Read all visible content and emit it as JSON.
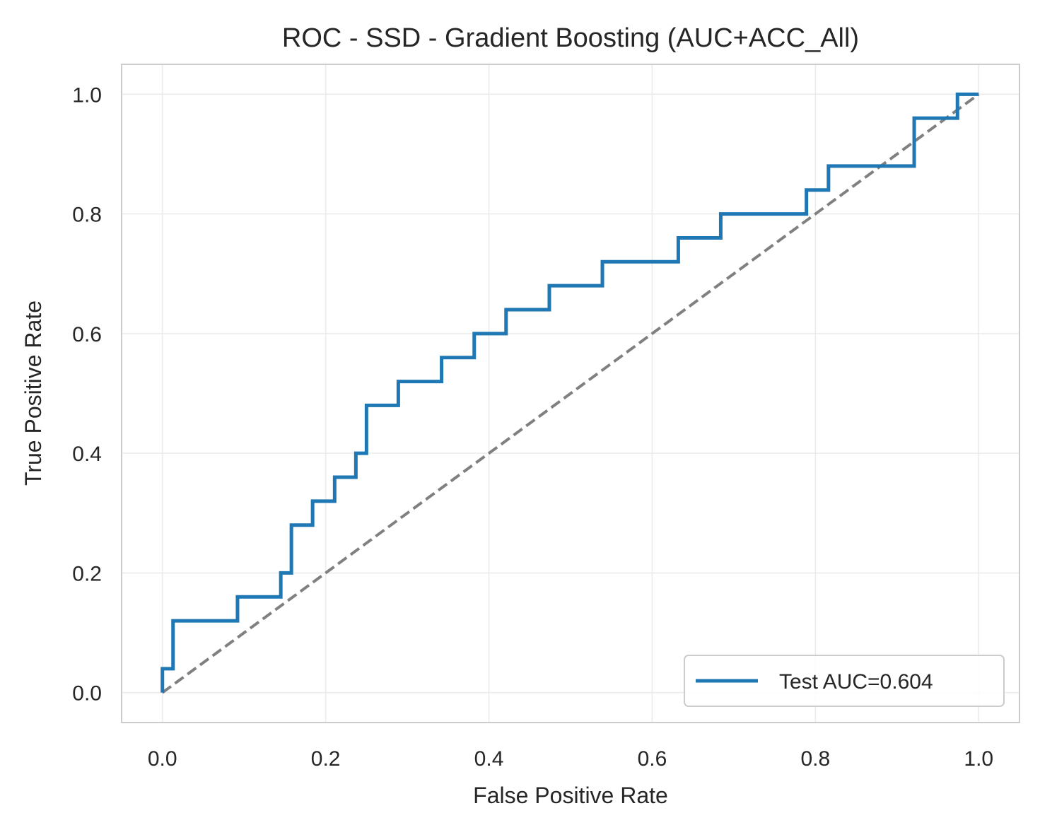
{
  "chart_data": {
    "type": "line",
    "title": "ROC - SSD - Gradient Boosting (AUC+ACC_All)",
    "xlabel": "False Positive Rate",
    "ylabel": "True Positive Rate",
    "xlim": [
      -0.05,
      1.05
    ],
    "ylim": [
      -0.05,
      1.05
    ],
    "xticks": [
      "0.0",
      "0.2",
      "0.4",
      "0.6",
      "0.8",
      "1.0"
    ],
    "yticks": [
      "0.0",
      "0.2",
      "0.4",
      "0.6",
      "0.8",
      "1.0"
    ],
    "grid": true,
    "legend_position": "lower-right",
    "series": [
      {
        "name": "Test AUC=0.604",
        "color": "#1f77b4",
        "style": "solid",
        "x": [
          0,
          0,
          0.013,
          0.013,
          0.092,
          0.092,
          0.145,
          0.145,
          0.158,
          0.158,
          0.184,
          0.184,
          0.211,
          0.211,
          0.237,
          0.237,
          0.25,
          0.25,
          0.289,
          0.289,
          0.342,
          0.342,
          0.382,
          0.382,
          0.421,
          0.421,
          0.474,
          0.474,
          0.539,
          0.539,
          0.632,
          0.632,
          0.684,
          0.684,
          0.789,
          0.789,
          0.816,
          0.816,
          0.921,
          0.921,
          0.974,
          0.974,
          1.0
        ],
        "y": [
          0,
          0.04,
          0.04,
          0.12,
          0.12,
          0.16,
          0.16,
          0.2,
          0.2,
          0.28,
          0.28,
          0.32,
          0.32,
          0.36,
          0.36,
          0.4,
          0.4,
          0.48,
          0.48,
          0.52,
          0.52,
          0.56,
          0.56,
          0.6,
          0.6,
          0.64,
          0.64,
          0.68,
          0.68,
          0.72,
          0.72,
          0.76,
          0.76,
          0.8,
          0.8,
          0.84,
          0.84,
          0.88,
          0.88,
          0.96,
          0.96,
          1.0,
          1.0
        ]
      },
      {
        "color": "#808080",
        "style": "dashed",
        "x": [
          0,
          1
        ],
        "y": [
          0,
          1
        ]
      }
    ]
  }
}
